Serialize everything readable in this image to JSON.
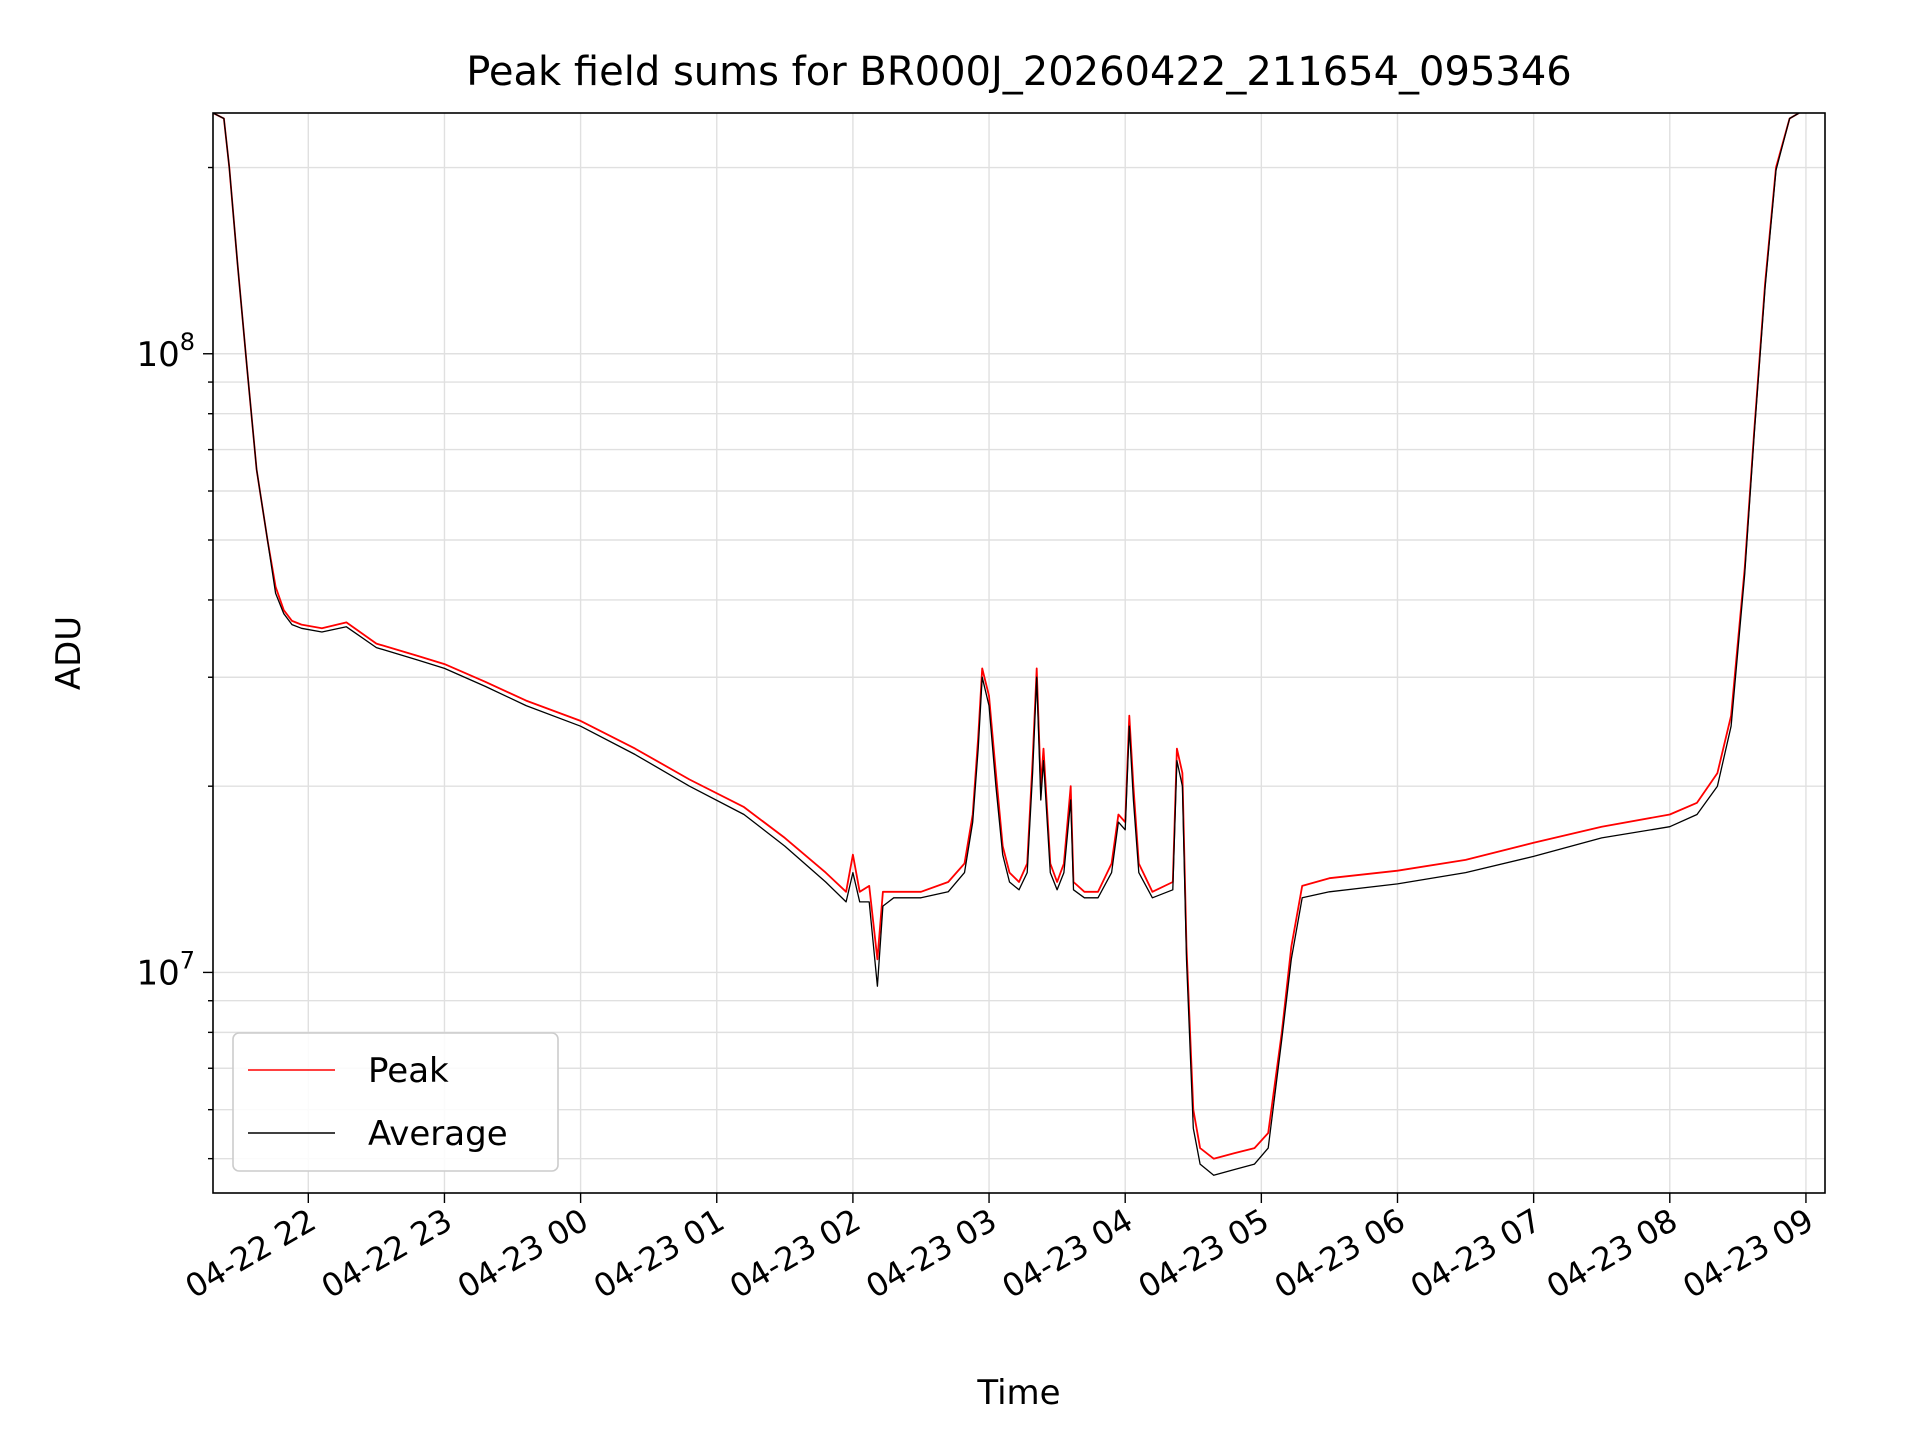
{
  "chart_data": {
    "type": "line",
    "title": "Peak field sums for BR000J_20260422_211654_095346",
    "xlabel": "Time",
    "ylabel": "ADU",
    "yscale": "log",
    "ylim": [
      4400000,
      245000000
    ],
    "xlim_hours": [
      -2.7,
      9.14
    ],
    "grid": true,
    "legend_position": "lower-left",
    "x_ticks": [
      {
        "label": "04-22 22",
        "hours": -2
      },
      {
        "label": "04-22 23",
        "hours": -1
      },
      {
        "label": "04-23 00",
        "hours": 0
      },
      {
        "label": "04-23 01",
        "hours": 1
      },
      {
        "label": "04-23 02",
        "hours": 2
      },
      {
        "label": "04-23 03",
        "hours": 3
      },
      {
        "label": "04-23 04",
        "hours": 4
      },
      {
        "label": "04-23 05",
        "hours": 5
      },
      {
        "label": "04-23 06",
        "hours": 6
      },
      {
        "label": "04-23 07",
        "hours": 7
      },
      {
        "label": "04-23 08",
        "hours": 8
      },
      {
        "label": "04-23 09",
        "hours": 9
      }
    ],
    "y_ticks": [
      {
        "base": "10",
        "exp": "7",
        "value": 10000000
      },
      {
        "base": "10",
        "exp": "8",
        "value": 100000000
      }
    ],
    "x_units": "hours relative to 2026-04-23 00:00",
    "series": [
      {
        "name": "Peak",
        "color": "#ff0000",
        "points": [
          [
            -2.7,
            245000000
          ],
          [
            -2.62,
            240000000
          ],
          [
            -2.58,
            200000000
          ],
          [
            -2.52,
            140000000
          ],
          [
            -2.45,
            95000000
          ],
          [
            -2.38,
            65000000
          ],
          [
            -2.3,
            50000000
          ],
          [
            -2.24,
            42000000
          ],
          [
            -2.18,
            38500000
          ],
          [
            -2.12,
            37000000
          ],
          [
            -2.05,
            36500000
          ],
          [
            -1.9,
            36000000
          ],
          [
            -1.72,
            36800000
          ],
          [
            -1.5,
            34000000
          ],
          [
            -1.2,
            32500000
          ],
          [
            -1.0,
            31500000
          ],
          [
            -0.7,
            29500000
          ],
          [
            -0.4,
            27500000
          ],
          [
            0.0,
            25500000
          ],
          [
            0.4,
            23000000
          ],
          [
            0.8,
            20500000
          ],
          [
            1.2,
            18500000
          ],
          [
            1.5,
            16500000
          ],
          [
            1.8,
            14500000
          ],
          [
            1.95,
            13500000
          ],
          [
            2.0,
            15500000
          ],
          [
            2.05,
            13500000
          ],
          [
            2.12,
            13800000
          ],
          [
            2.18,
            10500000
          ],
          [
            2.22,
            13500000
          ],
          [
            2.3,
            13500000
          ],
          [
            2.5,
            13500000
          ],
          [
            2.7,
            14000000
          ],
          [
            2.82,
            15000000
          ],
          [
            2.88,
            18000000
          ],
          [
            2.92,
            24000000
          ],
          [
            2.95,
            31000000
          ],
          [
            3.0,
            28000000
          ],
          [
            3.05,
            21000000
          ],
          [
            3.1,
            16000000
          ],
          [
            3.15,
            14500000
          ],
          [
            3.22,
            14000000
          ],
          [
            3.28,
            15000000
          ],
          [
            3.32,
            22000000
          ],
          [
            3.35,
            31000000
          ],
          [
            3.38,
            20000000
          ],
          [
            3.4,
            23000000
          ],
          [
            3.45,
            15000000
          ],
          [
            3.5,
            14000000
          ],
          [
            3.55,
            15000000
          ],
          [
            3.6,
            20000000
          ],
          [
            3.62,
            14000000
          ],
          [
            3.7,
            13500000
          ],
          [
            3.8,
            13500000
          ],
          [
            3.9,
            15000000
          ],
          [
            3.95,
            18000000
          ],
          [
            4.0,
            17500000
          ],
          [
            4.03,
            26000000
          ],
          [
            4.06,
            20000000
          ],
          [
            4.1,
            15000000
          ],
          [
            4.2,
            13500000
          ],
          [
            4.35,
            14000000
          ],
          [
            4.38,
            23000000
          ],
          [
            4.42,
            21000000
          ],
          [
            4.45,
            11000000
          ],
          [
            4.5,
            6000000
          ],
          [
            4.55,
            5200000
          ],
          [
            4.65,
            5000000
          ],
          [
            4.8,
            5100000
          ],
          [
            4.95,
            5200000
          ],
          [
            5.05,
            5500000
          ],
          [
            5.15,
            8000000
          ],
          [
            5.22,
            11000000
          ],
          [
            5.3,
            13800000
          ],
          [
            5.5,
            14200000
          ],
          [
            6.0,
            14600000
          ],
          [
            6.5,
            15200000
          ],
          [
            7.0,
            16200000
          ],
          [
            7.5,
            17200000
          ],
          [
            8.0,
            18000000
          ],
          [
            8.2,
            18800000
          ],
          [
            8.35,
            21000000
          ],
          [
            8.45,
            26000000
          ],
          [
            8.55,
            45000000
          ],
          [
            8.62,
            75000000
          ],
          [
            8.7,
            130000000
          ],
          [
            8.78,
            200000000
          ],
          [
            8.88,
            240000000
          ],
          [
            8.95,
            245000000
          ]
        ]
      },
      {
        "name": "Average",
        "color": "#000000",
        "points": [
          [
            -2.7,
            245000000
          ],
          [
            -2.62,
            240000000
          ],
          [
            -2.58,
            200000000
          ],
          [
            -2.52,
            140000000
          ],
          [
            -2.45,
            95000000
          ],
          [
            -2.38,
            65000000
          ],
          [
            -2.3,
            50000000
          ],
          [
            -2.24,
            41000000
          ],
          [
            -2.18,
            38000000
          ],
          [
            -2.12,
            36500000
          ],
          [
            -2.05,
            36000000
          ],
          [
            -1.9,
            35500000
          ],
          [
            -1.72,
            36200000
          ],
          [
            -1.5,
            33500000
          ],
          [
            -1.2,
            32000000
          ],
          [
            -1.0,
            31000000
          ],
          [
            -0.7,
            29000000
          ],
          [
            -0.4,
            27000000
          ],
          [
            0.0,
            25000000
          ],
          [
            0.4,
            22500000
          ],
          [
            0.8,
            20000000
          ],
          [
            1.2,
            18000000
          ],
          [
            1.5,
            16000000
          ],
          [
            1.8,
            14000000
          ],
          [
            1.95,
            13000000
          ],
          [
            2.0,
            14500000
          ],
          [
            2.05,
            13000000
          ],
          [
            2.12,
            13000000
          ],
          [
            2.18,
            9500000
          ],
          [
            2.22,
            12800000
          ],
          [
            2.3,
            13200000
          ],
          [
            2.5,
            13200000
          ],
          [
            2.7,
            13500000
          ],
          [
            2.82,
            14500000
          ],
          [
            2.88,
            17500000
          ],
          [
            2.92,
            23000000
          ],
          [
            2.95,
            30000000
          ],
          [
            3.0,
            27000000
          ],
          [
            3.05,
            20000000
          ],
          [
            3.1,
            15500000
          ],
          [
            3.15,
            14000000
          ],
          [
            3.22,
            13600000
          ],
          [
            3.28,
            14500000
          ],
          [
            3.32,
            21000000
          ],
          [
            3.35,
            30000000
          ],
          [
            3.38,
            19000000
          ],
          [
            3.4,
            22000000
          ],
          [
            3.45,
            14500000
          ],
          [
            3.5,
            13600000
          ],
          [
            3.55,
            14500000
          ],
          [
            3.6,
            19000000
          ],
          [
            3.62,
            13600000
          ],
          [
            3.7,
            13200000
          ],
          [
            3.8,
            13200000
          ],
          [
            3.9,
            14500000
          ],
          [
            3.95,
            17500000
          ],
          [
            4.0,
            17000000
          ],
          [
            4.03,
            25000000
          ],
          [
            4.06,
            19000000
          ],
          [
            4.1,
            14500000
          ],
          [
            4.2,
            13200000
          ],
          [
            4.35,
            13600000
          ],
          [
            4.38,
            22000000
          ],
          [
            4.42,
            20000000
          ],
          [
            4.45,
            10500000
          ],
          [
            4.5,
            5600000
          ],
          [
            4.55,
            4900000
          ],
          [
            4.65,
            4700000
          ],
          [
            4.8,
            4800000
          ],
          [
            4.95,
            4900000
          ],
          [
            5.05,
            5200000
          ],
          [
            5.15,
            7800000
          ],
          [
            5.22,
            10500000
          ],
          [
            5.3,
            13200000
          ],
          [
            5.5,
            13500000
          ],
          [
            6.0,
            13900000
          ],
          [
            6.5,
            14500000
          ],
          [
            7.0,
            15400000
          ],
          [
            7.5,
            16500000
          ],
          [
            8.0,
            17200000
          ],
          [
            8.2,
            18000000
          ],
          [
            8.35,
            20000000
          ],
          [
            8.45,
            25000000
          ],
          [
            8.55,
            44000000
          ],
          [
            8.62,
            74000000
          ],
          [
            8.7,
            128000000
          ],
          [
            8.78,
            198000000
          ],
          [
            8.88,
            240000000
          ],
          [
            8.95,
            245000000
          ]
        ]
      }
    ]
  },
  "colors": {
    "grid": "#e0e0e0",
    "axes": "#000000",
    "legend_border": "#cccccc"
  }
}
